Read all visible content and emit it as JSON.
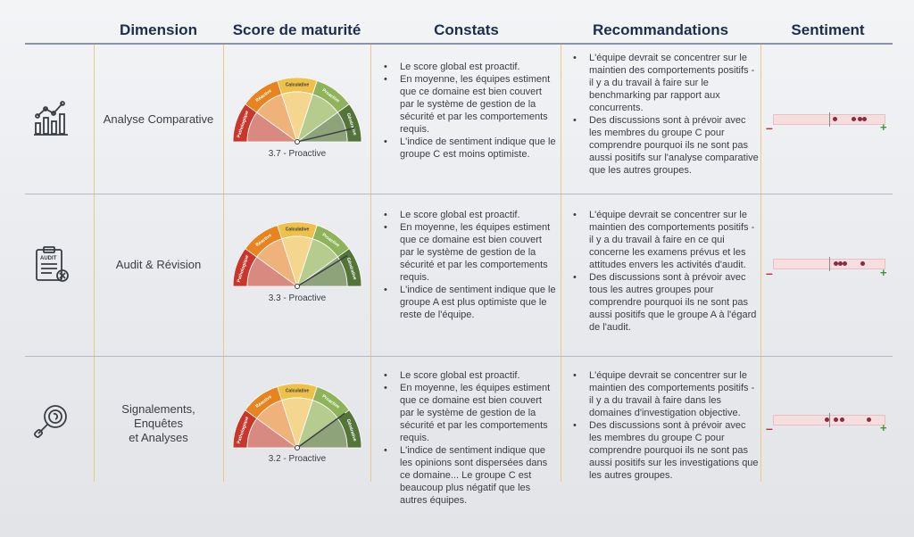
{
  "header": {
    "dimension": "Dimension",
    "score": "Score de maturité",
    "constats": "Constats",
    "recommandations": "Recommandations",
    "sentiment": "Sentiment"
  },
  "gauge_segments": [
    "Pathologique",
    "Réactive",
    "Calculative",
    "Proactive",
    "Générative"
  ],
  "colors": {
    "pathologique": "#c7372c",
    "reactive": "#e8841f",
    "calculative": "#f0c14a",
    "proactive": "#8fb35a",
    "generative": "#55743a"
  },
  "sentiment_scale": {
    "minus": "–",
    "plus": "+"
  },
  "rows": [
    {
      "icon": "chart-line-icon",
      "dimension": "Analyse Comparative",
      "score_value": 3.7,
      "score_label": "3.7 - Proactive",
      "constats": [
        "Le score global est proactif.",
        "En moyenne, les équipes estiment que ce domaine est bien couvert par le système de gestion de la sécurité et par les comportements requis.",
        "L'indice de sentiment indique que le groupe C est moins optimiste."
      ],
      "recommandations": [
        "L'équipe devrait se concentrer sur le maintien des comportements positifs - il y a du travail à faire sur le benchmarking par rapport aux concurrents.",
        "Des discussions sont à prévoir avec les membres du groupe C pour comprendre pourquoi ils ne sont pas aussi positifs sur l'analyse comparative que les autres groupes."
      ],
      "sentiment_points": [
        0.55,
        0.72,
        0.78,
        0.82
      ]
    },
    {
      "icon": "audit-clipboard-icon",
      "dimension": "Audit & Révision",
      "score_value": 3.3,
      "score_label": "3.3 - Proactive",
      "constats": [
        "Le score global est proactif.",
        "En moyenne, les équipes estiment que ce domaine est bien couvert par le système de gestion de la sécurité et par les comportements requis.",
        "L'indice de sentiment indique que le groupe A est plus optimiste que le reste de l'équipe."
      ],
      "recommandations": [
        "L'équipe devrait se concentrer sur le maintien des comportements positifs - il y a du travail à faire en ce qui concerne les examens prévus et les attitudes envers les activités d'audit.",
        "Des discussions sont à prévoir avec tous les autres groupes pour comprendre pourquoi ils ne sont pas aussi positifs que le groupe A à l'égard de l'audit."
      ],
      "sentiment_points": [
        0.56,
        0.6,
        0.64,
        0.8
      ]
    },
    {
      "icon": "magnifier-search-icon",
      "dimension": "Signalements, Enquêtes et Analyses",
      "dimension_lines": [
        "Signalements,",
        "Enquêtes",
        "et Analyses"
      ],
      "score_value": 3.2,
      "score_label": "3.2 - Proactive",
      "constats": [
        "Le score global est proactif.",
        "En moyenne, les équipes estiment que ce domaine est bien couvert par le système de gestion de la sécurité et par les comportements requis.",
        "L'indice de sentiment indique que les opinions sont dispersées dans ce domaine... Le groupe C est beaucoup plus négatif que les autres équipes."
      ],
      "recommandations": [
        "L'équipe devrait se concentrer sur le maintien des comportements positifs - il y a du travail à faire dans les domaines d'investigation objective.",
        "Des discussions sont à prévoir avec les membres du groupe C pour comprendre pourquoi ils ne sont pas aussi positifs sur les  investigations que les autres groupes."
      ],
      "sentiment_points": [
        0.48,
        0.56,
        0.62,
        0.86
      ]
    }
  ]
}
